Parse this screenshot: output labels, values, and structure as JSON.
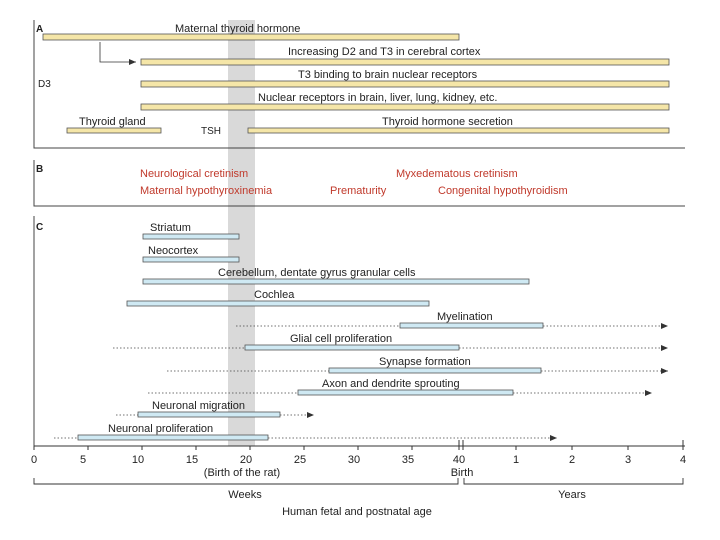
{
  "colors": {
    "yellow_bar": "#f5e6a8",
    "blue_bar": "#cfe9f3",
    "red_text": "#c0392b",
    "birth_band": "#d9d9d9",
    "line": "#333333"
  },
  "panelA": {
    "label": "A",
    "d3_label": "D3",
    "tsh_label": "TSH",
    "bars": [
      {
        "label": "Maternal thyroid hormone"
      },
      {
        "label": "Increasing D2 and T3 in cerebral cortex"
      },
      {
        "label": "T3 binding to brain nuclear receptors"
      },
      {
        "label": "Nuclear receptors in brain, liver, lung, kidney, etc."
      },
      {
        "label": "Thyroid gland"
      },
      {
        "label": "Thyroid hormone secretion"
      }
    ]
  },
  "panelB": {
    "label": "B",
    "items": [
      {
        "text": "Neurological cretinism"
      },
      {
        "text": "Myxedematous cretinism"
      },
      {
        "text": "Maternal hypothyroxinemia"
      },
      {
        "text": "Prematurity"
      },
      {
        "text": "Congenital hypothyroidism"
      }
    ]
  },
  "panelC": {
    "label": "C",
    "bars": [
      {
        "label": "Striatum"
      },
      {
        "label": "Neocortex"
      },
      {
        "label": "Cerebellum, dentate gyrus granular cells"
      },
      {
        "label": "Cochlea"
      },
      {
        "label": "Myelination"
      },
      {
        "label": "Glial cell proliferation"
      },
      {
        "label": "Synapse formation"
      },
      {
        "label": "Axon and dendrite sprouting"
      },
      {
        "label": "Neuronal migration"
      },
      {
        "label": "Neuronal proliferation"
      }
    ]
  },
  "axis": {
    "weeks_ticks": [
      "0",
      "5",
      "10",
      "15",
      "20",
      "25",
      "30",
      "35",
      "40"
    ],
    "years_ticks": [
      "1",
      "2",
      "3",
      "4"
    ],
    "birth_of_rat": "(Birth of the rat)",
    "birth": "Birth",
    "weeks_label": "Weeks",
    "years_label": "Years",
    "title": "Human fetal and postnatal age"
  }
}
